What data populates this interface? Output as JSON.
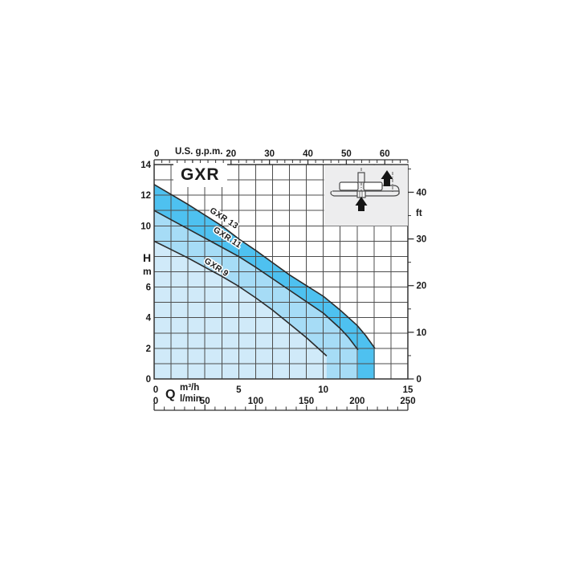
{
  "title": {
    "text": "GXR"
  },
  "colors": {
    "band_dark": "#4ec1f0",
    "band_medium": "#a6dcf6",
    "band_light": "#d0eaf9",
    "grid": "#4d4d4d",
    "plot_border": "#333333",
    "curve": "#2b2b2b",
    "text": "#1a1a1a",
    "inset_background": "#ededee",
    "inset_sketch": "#4a4a4a",
    "arrow": "#151515"
  },
  "chart_data": {
    "type": "area",
    "title": "GXR",
    "grid": true,
    "legend_position": "labels-on-curves",
    "x_axis_m3h": {
      "label": "Q",
      "unit": "m³/h",
      "min": 0,
      "max": 15,
      "labeled_ticks": [
        0,
        5,
        10,
        15
      ],
      "grid_step": 1
    },
    "x_axis_lmin": {
      "unit": "l/min",
      "min": 0,
      "max": 250,
      "labeled_ticks": [
        0,
        50,
        100,
        150,
        200,
        250
      ],
      "minor_tick_step": 10,
      "major_tick_step": 50
    },
    "x_axis_gpm": {
      "unit": "U.S. g.p.m.",
      "min": 0,
      "max": 66,
      "labeled_ticks": [
        0,
        20,
        30,
        40,
        50,
        60
      ],
      "minor_tick_step": 2,
      "major_tick_step": 10
    },
    "y_axis_m": {
      "label": "H",
      "unit": "m",
      "min": 0,
      "max": 14,
      "labeled_ticks": [
        0,
        2,
        4,
        6,
        10,
        12,
        14
      ],
      "grid_step": 1
    },
    "y_axis_ft": {
      "unit": "ft",
      "min": 0,
      "max": 45,
      "labeled_ticks": [
        0,
        10,
        20,
        30,
        40
      ],
      "minor_tick_step": 5,
      "major_tick_step": 10
    },
    "series": [
      {
        "name": "GXR 13",
        "band_color_key": "band_dark",
        "label_at": {
          "q": 4.05,
          "h": 10.35
        },
        "label_rotation_deg": 33,
        "points": [
          [
            0,
            12.7
          ],
          [
            1,
            12.05
          ],
          [
            2,
            11.4
          ],
          [
            3,
            10.7
          ],
          [
            4,
            10.0
          ],
          [
            5,
            9.15
          ],
          [
            6,
            8.4
          ],
          [
            7,
            7.6
          ],
          [
            8,
            6.8
          ],
          [
            9,
            6.1
          ],
          [
            10,
            5.4
          ],
          [
            11,
            4.5
          ],
          [
            12,
            3.5
          ],
          [
            12.5,
            2.85
          ],
          [
            13.05,
            2.0
          ]
        ]
      },
      {
        "name": "GXR 11",
        "band_color_key": "band_medium",
        "label_at": {
          "q": 4.25,
          "h": 9.1
        },
        "label_rotation_deg": 33,
        "points": [
          [
            0,
            11.0
          ],
          [
            1,
            10.4
          ],
          [
            2,
            9.8
          ],
          [
            3,
            9.2
          ],
          [
            4,
            8.6
          ],
          [
            5,
            8.0
          ],
          [
            6,
            7.3
          ],
          [
            7,
            6.55
          ],
          [
            8,
            5.8
          ],
          [
            9,
            5.05
          ],
          [
            10,
            4.3
          ],
          [
            11,
            3.3
          ],
          [
            11.5,
            2.7
          ],
          [
            12.05,
            1.9
          ]
        ]
      },
      {
        "name": "GXR 9",
        "band_color_key": "band_light",
        "label_at": {
          "q": 3.6,
          "h": 7.15
        },
        "label_rotation_deg": 33,
        "points": [
          [
            0,
            9.0
          ],
          [
            1,
            8.45
          ],
          [
            2,
            7.9
          ],
          [
            3,
            7.3
          ],
          [
            4,
            6.7
          ],
          [
            5,
            6.05
          ],
          [
            6,
            5.3
          ],
          [
            7,
            4.5
          ],
          [
            8,
            3.6
          ],
          [
            9,
            2.7
          ],
          [
            9.6,
            2.1
          ],
          [
            10.2,
            1.5
          ]
        ]
      }
    ],
    "inset_icon": "submersible-pump-with-flow-arrows"
  },
  "labels": {
    "gpm_unit": "U.S. g.p.m.",
    "ft_unit": "ft",
    "head_symbol": "H",
    "head_unit": "m",
    "flow_symbol": "Q",
    "flow_unit_m3h": "m³/h",
    "flow_unit_lmin": "l/min"
  }
}
